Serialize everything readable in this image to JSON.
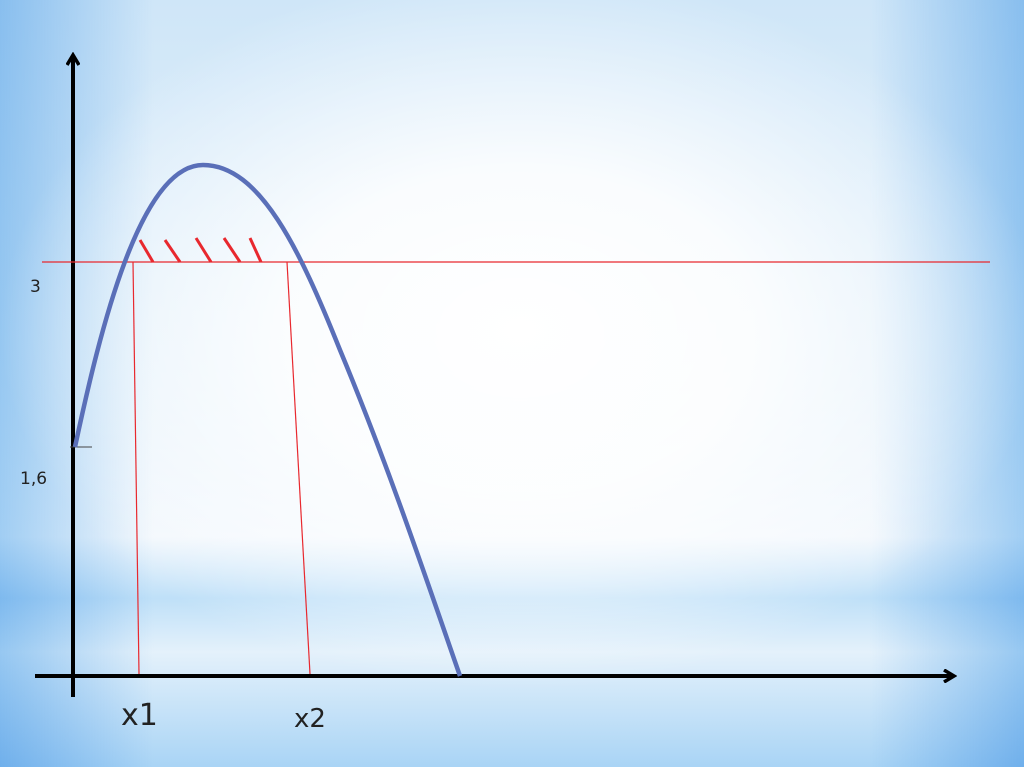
{
  "labels": {
    "y_high": "3",
    "y_low": "1,6",
    "x1": "x1",
    "x2": "x2"
  }
}
